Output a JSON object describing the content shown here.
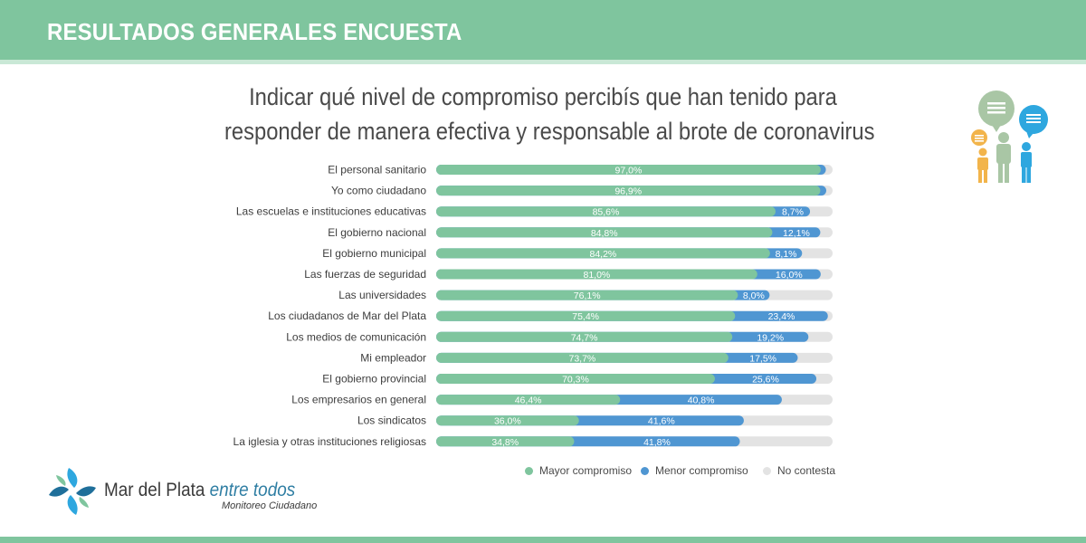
{
  "header": {
    "title": "RESULTADOS GENERALES ENCUESTA"
  },
  "chart_data": {
    "type": "bar",
    "orientation": "horizontal",
    "stacked": true,
    "title_lines": [
      "Indicar qué nivel de compromiso percibís que han tenido para",
      "responder de manera efectiva y responsable al brote de coronavirus"
    ],
    "categories": [
      "El personal sanitario",
      "Yo como ciudadano",
      "Las escuelas e instituciones educativas",
      "El gobierno nacional",
      "El gobierno municipal",
      "Las fuerzas de seguridad",
      "Las universidades",
      "Los ciudadanos de Mar del Plata",
      "Los medios de comunicación",
      "Mi empleador",
      "El gobierno provincial",
      "Los empresarios en general",
      "Los sindicatos",
      "La iglesia y otras instituciones religiosas"
    ],
    "series": [
      {
        "name": "Mayor compromiso",
        "color": "#7fc59e",
        "values": [
          97.0,
          96.9,
          85.6,
          84.8,
          84.2,
          81.0,
          76.1,
          75.4,
          74.7,
          73.7,
          70.3,
          46.4,
          36.0,
          34.8
        ],
        "labels": [
          "97,0%",
          "96,9%",
          "85,6%",
          "84,8%",
          "84,2%",
          "81,0%",
          "76,1%",
          "75,4%",
          "74,7%",
          "73,7%",
          "70,3%",
          "46,4%",
          "36,0%",
          "34,8%"
        ]
      },
      {
        "name": "Menor compromiso",
        "color": "#4f96d2",
        "values": [
          1.3,
          1.5,
          8.7,
          12.1,
          8.1,
          16.0,
          8.0,
          23.4,
          19.2,
          17.5,
          25.6,
          40.8,
          41.6,
          41.8
        ],
        "labels": [
          "",
          "",
          "8,7%",
          "12,1%",
          "8,1%",
          "16,0%",
          "8,0%",
          "23,4%",
          "19,2%",
          "17,5%",
          "25,6%",
          "40,8%",
          "41,6%",
          "41,8%"
        ]
      },
      {
        "name": "No contesta",
        "color": "#e3e3e3",
        "values": [
          1.7,
          1.6,
          5.7,
          3.1,
          7.7,
          3.0,
          15.9,
          1.2,
          6.1,
          8.8,
          4.1,
          12.8,
          22.4,
          23.4
        ],
        "labels": [
          "",
          "",
          "",
          "",
          "",
          "",
          "",
          "",
          "",
          "",
          "",
          "",
          "",
          ""
        ]
      }
    ],
    "xlim": [
      0,
      100
    ],
    "legend_position": "bottom-right"
  },
  "footer": {
    "brand_name": "Mar del Plata ",
    "brand_accent": "entre todos",
    "brand_sub": "Monitoreo Ciudadano"
  }
}
